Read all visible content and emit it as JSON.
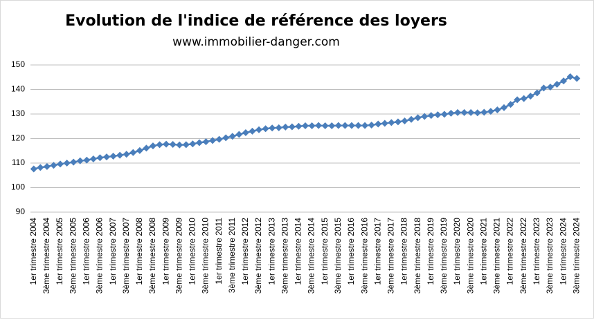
{
  "chart_data": {
    "type": "line",
    "title": "Evolution de l'indice de référence des loyers",
    "subtitle": "www.immobilier-danger.com",
    "categories": [
      "1er trimestre 2004",
      null,
      "3ème trimestre 2004",
      null,
      "1er trimestre 2005",
      null,
      "3ème trimestre 2005",
      null,
      "1er trimestre 2006",
      null,
      "3ème trimestre 2006",
      null,
      "1er trimestre 2007",
      null,
      "3ème trimestre 2007",
      null,
      "1er trimestre 2008",
      null,
      "3ème trimestre 2008",
      null,
      "1er trimestre 2009",
      null,
      "3ème trimestre 2009",
      null,
      "1er trimestre 2010",
      null,
      "3ème trimestre 2010",
      null,
      "1er trimestre 2011",
      null,
      "3ème trimestre 2011",
      null,
      "1er trimestre 2012",
      null,
      "3ème trimestre 2012",
      null,
      "1er trimestre 2013",
      null,
      "3ème trimestre 2013",
      null,
      "1er trimestre 2014",
      null,
      "3ème trimestre 2014",
      null,
      "1er trimestre 2015",
      null,
      "3ème trimestre 2015",
      null,
      "1er trimestre 2016",
      null,
      "3ème trimestre 2016",
      null,
      "1er trimestre 2017",
      null,
      "3ème trimestre 2017",
      null,
      "1er trimestre 2018",
      null,
      "3ème trimestre 2018",
      null,
      "1er trimestre 2019",
      null,
      "3ème trimestre 2019",
      null,
      "1er trimestre 2020",
      null,
      "3ème trimestre 2020",
      null,
      "1er trimestre 2021",
      null,
      "3ème trimestre 2021",
      null,
      "1er trimestre 2022",
      null,
      "3ème trimestre 2022",
      null,
      "1er trimestre 2023",
      null,
      "3ème trimestre 2023",
      null,
      "1er trimestre 2024",
      null,
      "3ème trimestre 2024"
    ],
    "values": [
      107.6,
      108.2,
      108.6,
      109.1,
      109.6,
      110.0,
      110.4,
      110.9,
      111.2,
      111.7,
      112.2,
      112.5,
      112.8,
      113.2,
      113.6,
      114.3,
      115.1,
      116.1,
      117.0,
      117.5,
      117.7,
      117.6,
      117.4,
      117.5,
      117.8,
      118.3,
      118.7,
      119.2,
      119.7,
      120.3,
      120.9,
      121.7,
      122.4,
      123.0,
      123.6,
      124.0,
      124.3,
      124.4,
      124.7,
      124.8,
      125.0,
      125.2,
      125.2,
      125.3,
      125.2,
      125.2,
      125.3,
      125.3,
      125.3,
      125.3,
      125.3,
      125.5,
      125.9,
      126.2,
      126.5,
      126.8,
      127.2,
      127.8,
      128.5,
      129.0,
      129.4,
      129.7,
      129.9,
      130.3,
      130.6,
      130.6,
      130.6,
      130.5,
      130.7,
      131.1,
      131.7,
      132.6,
      133.9,
      135.8,
      136.3,
      137.3,
      138.6,
      140.6,
      141.0,
      142.1,
      143.5,
      145.2,
      144.5
    ],
    "color": "#4a7ebb",
    "ylim": [
      90,
      150
    ],
    "yticks": [
      90,
      100,
      110,
      120,
      130,
      140,
      150
    ],
    "grid": true
  }
}
